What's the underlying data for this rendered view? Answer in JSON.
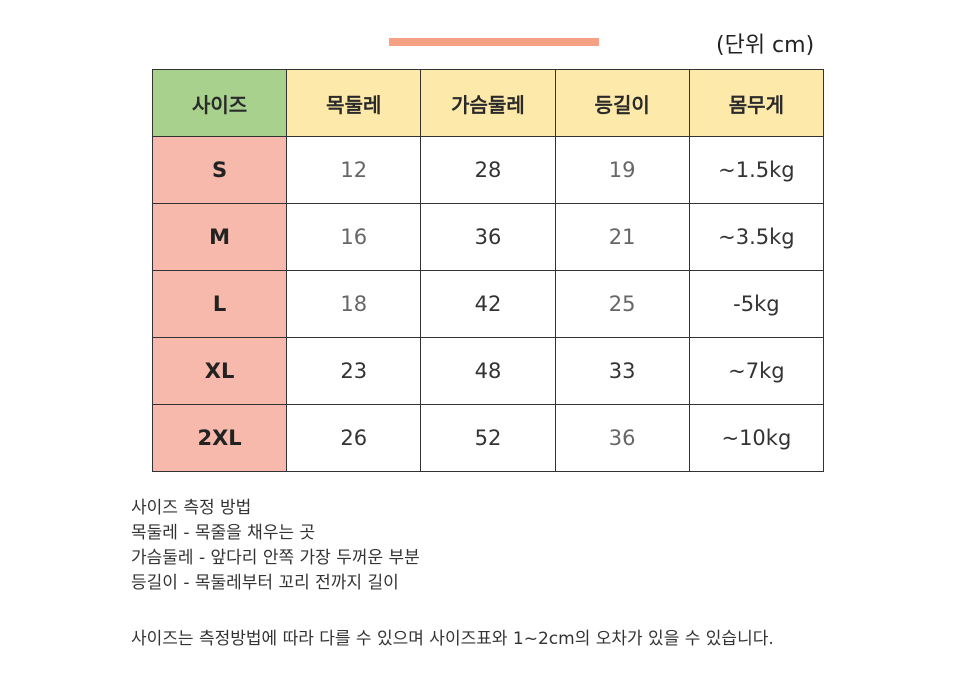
{
  "unit_label": "(단위 cm)",
  "colors": {
    "accent_bar": "#f4a184",
    "header_first": "#a9d18e",
    "header": "#fde9a9",
    "size_column": "#f6b9ab"
  },
  "table": {
    "headers": [
      "사이즈",
      "목둘레",
      "가슴둘레",
      "등길이",
      "몸무게"
    ],
    "rows": [
      [
        "S",
        "12",
        "28",
        "19",
        "~1.5kg"
      ],
      [
        "M",
        "16",
        "36",
        "21",
        "~3.5kg"
      ],
      [
        "L",
        "18",
        "42",
        "25",
        "-5kg"
      ],
      [
        "XL",
        "23",
        "48",
        "33",
        "~7kg"
      ],
      [
        "2XL",
        "26",
        "52",
        "36",
        "~10kg"
      ]
    ]
  },
  "notes": {
    "title": "사이즈 측정 방법",
    "neck": "목둘레 - 목줄을 채우는 곳",
    "chest": "가슴둘레 - 앞다리 안쪽 가장 두꺼운 부분",
    "back": "등길이 - 목둘레부터 꼬리 전까지 길이"
  },
  "disclaimer": "사이즈는 측정방법에 따라 다를 수 있으며 사이즈표와 1~2cm의 오차가 있을 수 있습니다."
}
